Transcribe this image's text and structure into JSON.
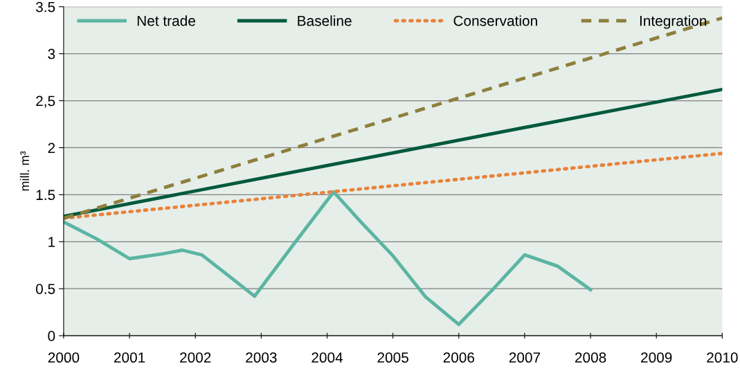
{
  "chart_data": {
    "type": "line",
    "ylabel": "mill. m³",
    "xlim": [
      2000,
      2010
    ],
    "xticks": [
      2000,
      2001,
      2002,
      2003,
      2004,
      2005,
      2006,
      2007,
      2008,
      2009,
      2010
    ],
    "ylim": [
      0,
      3.5
    ],
    "yticks": [
      0,
      0.5,
      1,
      1.5,
      2,
      {
        "value": 2.5,
        "label": "2,5"
      },
      3,
      3.5
    ],
    "grid": "y",
    "legend": "top",
    "series": [
      {
        "name": "Net trade",
        "color": "#5bb5a2",
        "line_style": "solid",
        "x": [
          2000,
          2000.5,
          2001,
          2001.5,
          2001.8,
          2002.1,
          2002.5,
          2002.9,
          2003.5,
          2004.1,
          2004.5,
          2005,
          2005.5,
          2006,
          2006.5,
          2007,
          2007.5,
          2008
        ],
        "values": [
          1.21,
          1.03,
          0.82,
          0.87,
          0.91,
          0.86,
          0.64,
          0.42,
          0.98,
          1.53,
          1.22,
          0.85,
          0.41,
          0.12,
          0.48,
          0.86,
          0.74,
          0.49
        ]
      },
      {
        "name": "Baseline",
        "color": "#005a3c",
        "line_style": "solid",
        "x": [
          2000,
          2010
        ],
        "values": [
          1.27,
          2.62
        ]
      },
      {
        "name": "Conservation",
        "color": "#e8823a",
        "line_style": "dotted",
        "x": [
          2000,
          2010
        ],
        "values": [
          1.25,
          1.94
        ]
      },
      {
        "name": "Integration",
        "color": "#8e7f3c",
        "line_style": "dashed",
        "x": [
          2000,
          2010
        ],
        "values": [
          1.25,
          3.38
        ]
      }
    ]
  }
}
